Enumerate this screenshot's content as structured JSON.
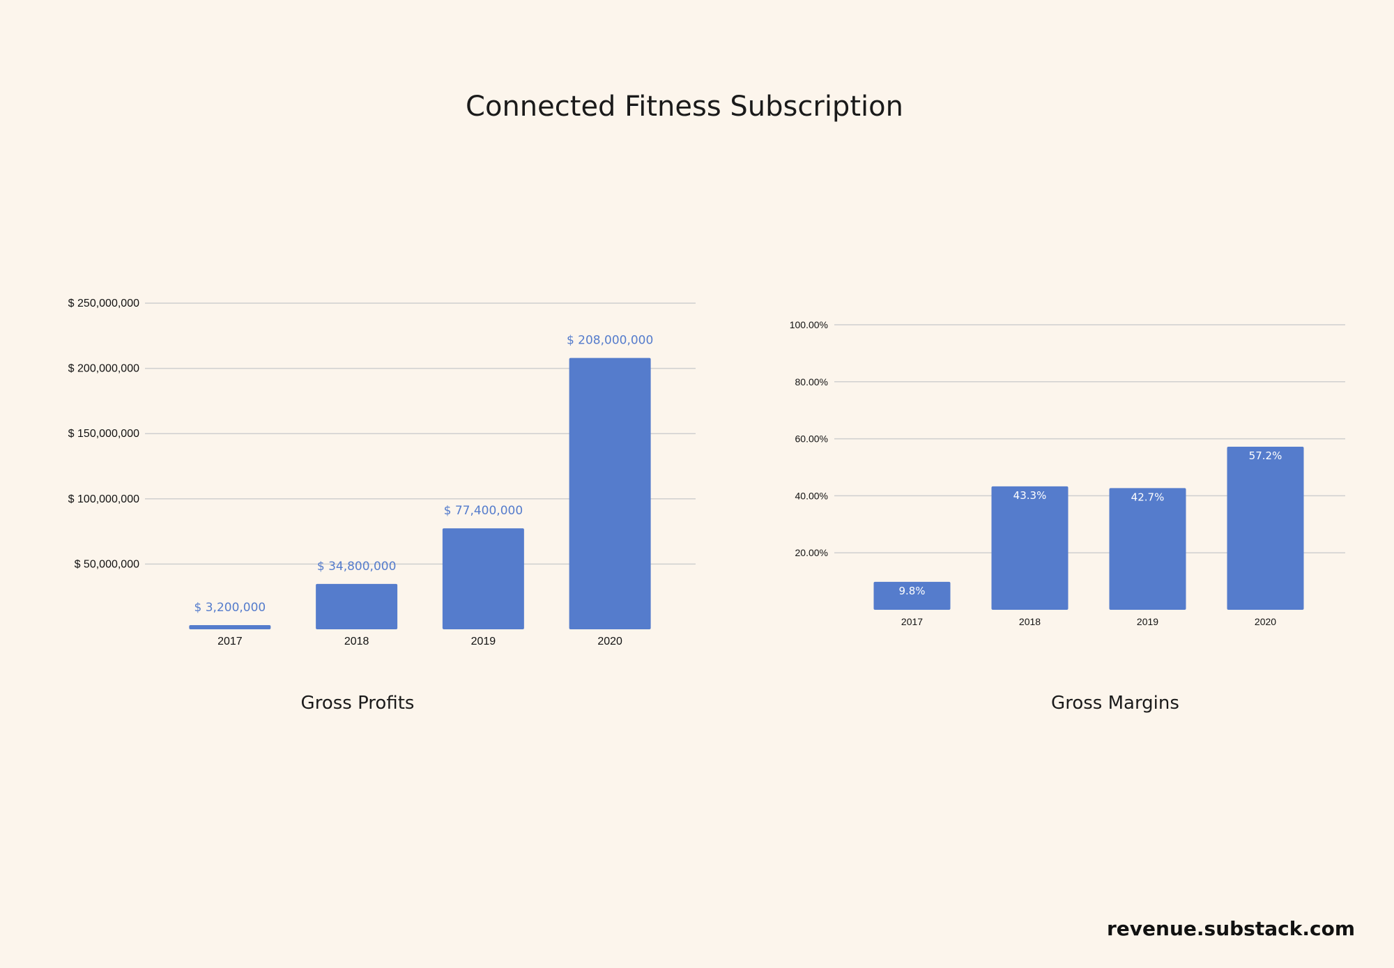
{
  "title": "Connected Fitness Subscription",
  "footer": "revenue.substack.com",
  "colors": {
    "background": "#fcf5ec",
    "bar": "#557ccc",
    "label": "#557ccc",
    "grid": "#cfcfcf"
  },
  "chart_data": [
    {
      "type": "bar",
      "title": "",
      "caption": "Gross Profits",
      "categories": [
        "2017",
        "2018",
        "2019",
        "2020"
      ],
      "values": [
        3200000,
        34800000,
        77400000,
        208000000
      ],
      "data_labels": [
        "$ 3,200,000",
        "$ 34,800,000",
        "$ 77,400,000",
        "$ 208,000,000"
      ],
      "data_label_position": "above",
      "ylim": [
        0,
        250000000
      ],
      "yticks": [
        50000000,
        100000000,
        150000000,
        200000000,
        250000000
      ],
      "ytick_labels": [
        "$ 50,000,000",
        "$ 100,000,000",
        "$ 150,000,000",
        "$ 200,000,000",
        "$ 250,000,000"
      ],
      "grid": true,
      "xlabel": "",
      "ylabel": ""
    },
    {
      "type": "bar",
      "title": "",
      "caption": "Gross Margins",
      "categories": [
        "2017",
        "2018",
        "2019",
        "2020"
      ],
      "values": [
        9.8,
        43.3,
        42.7,
        57.2
      ],
      "data_labels": [
        "9.8%",
        "43.3%",
        "42.7%",
        "57.2%"
      ],
      "data_label_position": "inside",
      "ylim": [
        0,
        100
      ],
      "yticks": [
        20,
        40,
        60,
        80,
        100
      ],
      "ytick_labels": [
        "20.00%",
        "40.00%",
        "60.00%",
        "80.00%",
        "100.00%"
      ],
      "grid": true,
      "xlabel": "",
      "ylabel": ""
    }
  ]
}
